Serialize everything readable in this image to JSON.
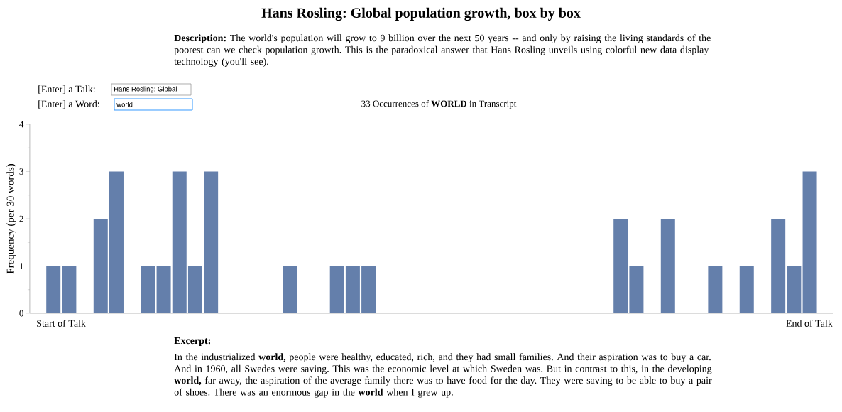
{
  "chart_data": {
    "type": "bar",
    "title": "Hans Rosling: Global population growth, box by box",
    "subtitle": "33 Occurrences of **WORLD** in Transcript",
    "ylabel": "Frequency (per 30 words)",
    "categories": [
      null,
      null,
      null,
      null,
      null,
      null,
      null,
      null,
      null,
      null,
      null,
      null,
      null,
      null,
      null,
      null,
      null,
      null,
      null,
      null,
      null,
      null,
      null,
      null,
      null,
      null,
      null,
      null,
      null,
      null,
      null,
      null,
      null,
      null,
      null,
      null,
      null,
      null,
      null,
      null,
      null,
      null,
      null,
      null,
      null,
      null,
      null,
      null,
      null,
      null,
      null
    ],
    "values": [
      0,
      1,
      1,
      0,
      2,
      3,
      0,
      1,
      1,
      3,
      1,
      3,
      0,
      0,
      0,
      0,
      1,
      0,
      0,
      1,
      1,
      1,
      0,
      0,
      0,
      0,
      0,
      0,
      0,
      0,
      0,
      0,
      0,
      0,
      0,
      0,
      0,
      2,
      1,
      0,
      2,
      0,
      0,
      1,
      0,
      1,
      0,
      2,
      1,
      3,
      0
    ],
    "color": "#647fab",
    "ylim": [
      0,
      4
    ],
    "yticks": [
      0,
      1,
      2,
      3,
      4
    ],
    "tick_labels": "y",
    "annotations": [
      "**Description:** The world's population will grow to 9 billion over the next 50 years -- and only by raising the living standards of the poorest can we check population growth. This is the paradoxical answer that Hans Rosling unveils using colorful new data display technology (you'll see).",
      "[Enter] a Talk:",
      "Hans Rosling: Global",
      "[Enter] a Word:",
      "world",
      "Start of Talk",
      "End of Talk",
      "Excerpt:",
      "In the industrialized **world,** people were healthy, educated, rich, and they had small families. And their aspiration was to buy a car. And in 1960, all Swedes were saving. This was the economic level at which Sweden was. But in contrast to this, in the developing **world,** far away, the aspiration of the average family there was to have food for the day. They were saving to be able to buy a pair of shoes. There was an enormous gap in the **world** when I grew up."
    ]
  }
}
